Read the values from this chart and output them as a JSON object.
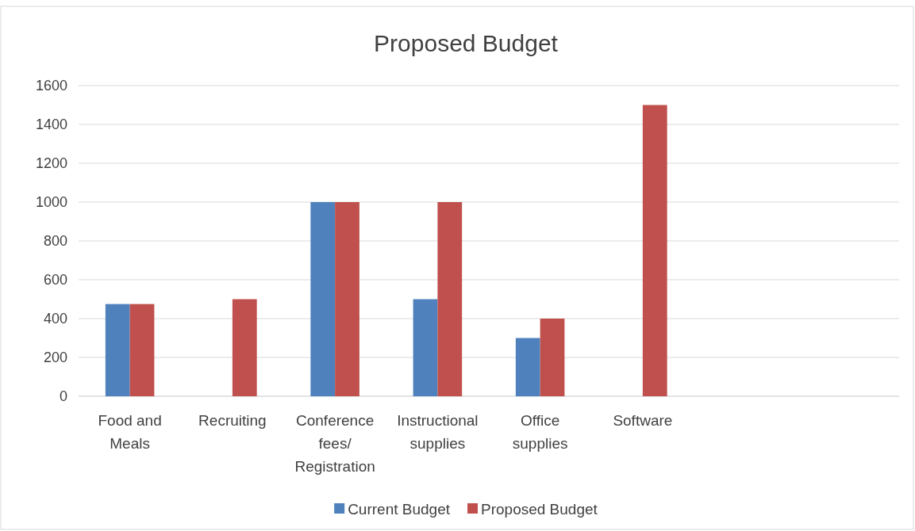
{
  "chart_data": {
    "type": "bar",
    "title": "Proposed Budget",
    "categories": [
      "Food and Meals",
      "Recruiting",
      "Conference fees/ Registration",
      "Instructional supplies",
      "Office supplies",
      "Software",
      null,
      null
    ],
    "series": [
      {
        "name": "Current Budget",
        "color": "#4f81bd",
        "values": [
          475,
          null,
          1000,
          500,
          300,
          null,
          null,
          null
        ]
      },
      {
        "name": "Proposed Budget",
        "color": "#c0504d",
        "values": [
          475,
          500,
          1000,
          1000,
          400,
          1500,
          null,
          null
        ]
      }
    ],
    "ylim": [
      0,
      1600
    ],
    "yticks": [
      0,
      200,
      400,
      600,
      800,
      1000,
      1200,
      1400,
      1600
    ],
    "grid": "y",
    "legend": "bottom"
  }
}
